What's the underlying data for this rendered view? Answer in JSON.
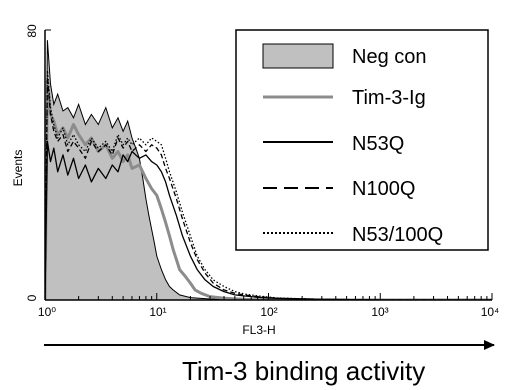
{
  "chart_data": {
    "type": "area",
    "xlabel": "FL3-H",
    "ylabel": "Events",
    "xscale": "log",
    "xlim": [
      1,
      10000
    ],
    "ylim": [
      0,
      80
    ],
    "x_tick_labels": [
      "10⁰",
      "10¹",
      "10²",
      "10³",
      "10⁴"
    ],
    "y_tick_labels": [
      "0",
      "80"
    ],
    "legend_position": "top-right",
    "series": [
      {
        "name": "Neg con",
        "style": "filled-gray",
        "color": "#c0c0c0",
        "x": [
          1,
          1.05,
          1.12,
          1.2,
          1.3,
          1.45,
          1.6,
          1.8,
          2,
          2.3,
          2.6,
          3,
          3.5,
          4,
          4.5,
          5,
          5.5,
          6,
          6.5,
          7,
          7.5,
          8,
          8.5,
          9,
          9.5,
          10,
          11,
          12,
          13,
          14,
          16,
          20,
          30,
          50,
          100,
          1000,
          10000
        ],
        "y": [
          0,
          77,
          64,
          58,
          61,
          56,
          57,
          54,
          58,
          52,
          55,
          52,
          57,
          51,
          54,
          50,
          53,
          48,
          45,
          42,
          36,
          30,
          25,
          21,
          17,
          13,
          9,
          6,
          4,
          3,
          1.5,
          0.7,
          0.3,
          0.1,
          0,
          0,
          0
        ]
      },
      {
        "name": "Tim-3-Ig",
        "style": "gray-line",
        "color": "#8c8c8c",
        "x": [
          1,
          1.05,
          1.12,
          1.2,
          1.3,
          1.45,
          1.6,
          1.8,
          2,
          2.3,
          2.6,
          3,
          3.5,
          4,
          4.5,
          5,
          5.5,
          6,
          7,
          8,
          9,
          10,
          11,
          12,
          13,
          14,
          15,
          16,
          18,
          20,
          22,
          25,
          30,
          40,
          60,
          100,
          1000,
          10000
        ],
        "y": [
          0,
          65,
          55,
          53,
          49,
          51,
          48,
          52,
          49,
          46,
          48,
          44,
          46,
          42,
          44,
          41,
          43,
          39,
          40,
          36,
          33,
          31,
          27,
          23,
          19,
          15,
          12,
          9,
          7,
          5,
          3,
          2,
          1,
          0.5,
          0.2,
          0,
          0,
          0
        ]
      },
      {
        "name": "N53Q",
        "style": "black-line",
        "color": "#000000",
        "x": [
          1,
          1.05,
          1.12,
          1.2,
          1.3,
          1.45,
          1.6,
          1.8,
          2,
          2.3,
          2.6,
          3,
          3.5,
          4,
          4.5,
          5,
          5.5,
          6,
          7,
          8,
          9,
          10,
          11,
          12,
          13,
          15,
          17,
          20,
          23,
          27,
          32,
          40,
          50,
          60,
          80,
          120,
          300,
          1000,
          10000
        ],
        "y": [
          0,
          47,
          41,
          45,
          38,
          43,
          37,
          42,
          36,
          40,
          35,
          39,
          36,
          40,
          38,
          43,
          41,
          44,
          42,
          43,
          41,
          40,
          38,
          35,
          31,
          25,
          19,
          13,
          9,
          6,
          4,
          2.5,
          1.5,
          1.2,
          0.8,
          0.5,
          0.2,
          0,
          0
        ]
      },
      {
        "name": "N100Q",
        "style": "dashed",
        "color": "#000000",
        "x": [
          1,
          1.05,
          1.12,
          1.2,
          1.3,
          1.45,
          1.6,
          1.8,
          2,
          2.3,
          2.6,
          3,
          3.5,
          4,
          4.5,
          5,
          5.5,
          6,
          7,
          8,
          9,
          10,
          11,
          12,
          13,
          15,
          17,
          20,
          23,
          27,
          32,
          40,
          50,
          60,
          80,
          120,
          300,
          1000,
          10000
        ],
        "y": [
          0,
          66,
          55,
          50,
          47,
          49,
          44,
          47,
          45,
          42,
          47,
          44,
          46,
          43,
          48,
          45,
          47,
          44,
          46,
          44,
          46,
          45,
          43,
          39,
          36,
          30,
          24,
          17,
          12,
          8,
          5,
          3,
          2,
          1.5,
          1,
          0.5,
          0.2,
          0,
          0
        ]
      },
      {
        "name": "N53/100Q",
        "style": "dotted",
        "color": "#000000",
        "x": [
          1,
          1.05,
          1.12,
          1.2,
          1.3,
          1.45,
          1.6,
          1.8,
          2,
          2.3,
          2.6,
          3,
          3.5,
          4,
          4.5,
          5,
          5.5,
          6,
          7,
          8,
          9,
          10,
          11,
          12,
          13,
          15,
          17,
          20,
          23,
          27,
          32,
          40,
          50,
          60,
          80,
          120,
          300,
          1000,
          10000
        ],
        "y": [
          0,
          68,
          57,
          52,
          48,
          51,
          46,
          49,
          46,
          44,
          48,
          45,
          47,
          44,
          49,
          46,
          48,
          46,
          48,
          46,
          48,
          47,
          46,
          42,
          38,
          32,
          26,
          19,
          13,
          9,
          6,
          4,
          2.5,
          1.8,
          1.2,
          0.6,
          0.2,
          0,
          0
        ]
      }
    ],
    "annotation": "Tim-3 binding activity"
  }
}
